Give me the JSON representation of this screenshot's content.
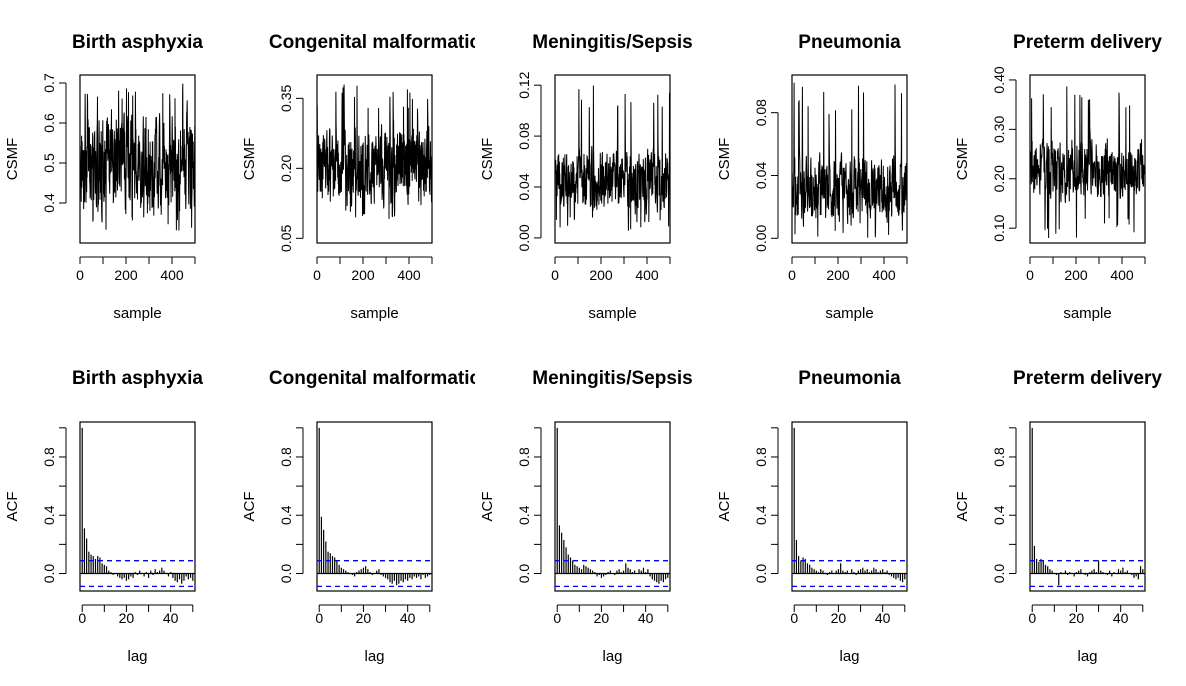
{
  "chart_data": [
    {
      "type": "line",
      "row": "trace",
      "title": "Birth asphyxia",
      "xlabel": "sample",
      "ylabel": "CSMF",
      "xlim": [
        0,
        500
      ],
      "ylim": [
        0.3,
        0.72
      ],
      "xticks": [
        0,
        200,
        400
      ],
      "xtick_labels": [
        "0",
        "200",
        "400"
      ],
      "yticks": [
        0.4,
        0.5,
        0.6,
        0.7
      ],
      "ytick_labels": [
        "0.4",
        "0.5",
        "0.6",
        "0.7"
      ],
      "center": 0.5,
      "amp": 0.1,
      "spike_max": 0.7,
      "spike_min": 0.33
    },
    {
      "type": "line",
      "row": "trace",
      "title": "Congenital malformatic",
      "xlabel": "sample",
      "ylabel": "CSMF",
      "xlim": [
        0,
        500
      ],
      "ylim": [
        0.04,
        0.4
      ],
      "xticks": [
        0,
        200,
        400
      ],
      "xtick_labels": [
        "0",
        "200",
        "400"
      ],
      "yticks": [
        0.05,
        0.2,
        0.35
      ],
      "ytick_labels": [
        "0.05",
        "0.20",
        "0.35"
      ],
      "center": 0.2,
      "amp": 0.07,
      "spike_max": 0.38,
      "spike_min": 0.09
    },
    {
      "type": "line",
      "row": "trace",
      "title": "Meningitis/Sepsis",
      "xlabel": "sample",
      "ylabel": "CSMF",
      "xlim": [
        0,
        500
      ],
      "ylim": [
        -0.004,
        0.128
      ],
      "xticks": [
        0,
        200,
        400
      ],
      "xtick_labels": [
        "0",
        "200",
        "400"
      ],
      "yticks": [
        0.0,
        0.04,
        0.08,
        0.12
      ],
      "ytick_labels": [
        "0.00",
        "0.04",
        "0.08",
        "0.12"
      ],
      "center": 0.045,
      "amp": 0.02,
      "spike_max": 0.12,
      "spike_min": 0.005
    },
    {
      "type": "line",
      "row": "trace",
      "title": "Pneumonia",
      "xlabel": "sample",
      "ylabel": "CSMF",
      "xlim": [
        0,
        500
      ],
      "ylim": [
        -0.003,
        0.104
      ],
      "xticks": [
        0,
        200,
        400
      ],
      "xtick_labels": [
        "0",
        "200",
        "400"
      ],
      "yticks": [
        0.0,
        0.04,
        0.08
      ],
      "ytick_labels": [
        "0.00",
        "0.04",
        "0.08"
      ],
      "center": 0.03,
      "amp": 0.018,
      "spike_max": 0.1,
      "spike_min": 0.0
    },
    {
      "type": "line",
      "row": "trace",
      "title": "Preterm delivery",
      "xlabel": "sample",
      "ylabel": "CSMF",
      "xlim": [
        0,
        500
      ],
      "ylim": [
        0.07,
        0.41
      ],
      "xticks": [
        0,
        200,
        400
      ],
      "xtick_labels": [
        "0",
        "200",
        "400"
      ],
      "yticks": [
        0.1,
        0.2,
        0.3,
        0.4
      ],
      "ytick_labels": [
        "0.10",
        "0.20",
        "0.30",
        "0.40"
      ],
      "center": 0.22,
      "amp": 0.05,
      "spike_max": 0.39,
      "spike_min": 0.08
    },
    {
      "type": "bar",
      "row": "acf",
      "title": "Birth asphyxia",
      "xlabel": "lag",
      "ylabel": "ACF",
      "xlim": [
        -1,
        51
      ],
      "ylim": [
        -0.12,
        1.04
      ],
      "xticks": [
        0,
        20,
        40
      ],
      "xtick_labels": [
        "0",
        "20",
        "40"
      ],
      "yticks": [
        0.0,
        0.2,
        0.4,
        0.6,
        0.8,
        1.0
      ],
      "ytick_labels": [
        "0.0",
        "",
        "0.4",
        "",
        "0.8",
        ""
      ],
      "ci": 0.088,
      "acf": [
        1.0,
        0.31,
        0.24,
        0.15,
        0.13,
        0.12,
        0.1,
        0.12,
        0.11,
        0.07,
        0.06,
        0.05,
        0.02,
        0.01,
        -0.01,
        0.0,
        -0.02,
        -0.03,
        -0.04,
        -0.03,
        -0.05,
        -0.04,
        -0.02,
        -0.03,
        0.01,
        -0.01,
        0.02,
        0.0,
        -0.02,
        0.01,
        -0.03,
        0.02,
        -0.01,
        0.03,
        0.01,
        0.02,
        0.04,
        0.02,
        0.0,
        -0.02,
        0.01,
        -0.03,
        -0.05,
        -0.06,
        -0.04,
        -0.07,
        -0.05,
        -0.02,
        -0.04,
        -0.03,
        -0.05
      ]
    },
    {
      "type": "bar",
      "row": "acf",
      "title": "Congenital malformatic",
      "xlabel": "lag",
      "ylabel": "ACF",
      "xlim": [
        -1,
        51
      ],
      "ylim": [
        -0.12,
        1.04
      ],
      "xticks": [
        0,
        20,
        40
      ],
      "xtick_labels": [
        "0",
        "20",
        "40"
      ],
      "yticks": [
        0.0,
        0.2,
        0.4,
        0.6,
        0.8,
        1.0
      ],
      "ytick_labels": [
        "0.0",
        "",
        "0.4",
        "",
        "0.8",
        ""
      ],
      "ci": 0.088,
      "acf": [
        1.0,
        0.39,
        0.3,
        0.22,
        0.15,
        0.14,
        0.12,
        0.11,
        0.09,
        0.06,
        0.04,
        0.03,
        0.02,
        0.01,
        0.0,
        -0.01,
        -0.02,
        0.01,
        0.02,
        0.03,
        0.04,
        0.05,
        0.03,
        0.01,
        -0.01,
        0.0,
        0.02,
        0.03,
        -0.01,
        -0.02,
        -0.03,
        -0.04,
        -0.06,
        -0.07,
        -0.05,
        -0.08,
        -0.07,
        -0.05,
        -0.06,
        -0.04,
        -0.05,
        -0.03,
        -0.04,
        -0.02,
        -0.03,
        -0.02,
        -0.04,
        -0.01,
        -0.03,
        -0.02,
        -0.01
      ]
    },
    {
      "type": "bar",
      "row": "acf",
      "title": "Meningitis/Sepsis",
      "xlabel": "lag",
      "ylabel": "ACF",
      "xlim": [
        -1,
        51
      ],
      "ylim": [
        -0.12,
        1.04
      ],
      "xticks": [
        0,
        20,
        40
      ],
      "xtick_labels": [
        "0",
        "20",
        "40"
      ],
      "yticks": [
        0.0,
        0.2,
        0.4,
        0.6,
        0.8,
        1.0
      ],
      "ytick_labels": [
        "0.0",
        "",
        "0.4",
        "",
        "0.8",
        ""
      ],
      "ci": 0.088,
      "acf": [
        1.0,
        0.33,
        0.28,
        0.23,
        0.18,
        0.13,
        0.11,
        0.09,
        0.06,
        0.05,
        0.04,
        0.03,
        0.06,
        0.05,
        0.04,
        0.03,
        0.02,
        0.01,
        -0.02,
        -0.01,
        -0.03,
        -0.02,
        -0.01,
        0.01,
        0.02,
        0.0,
        -0.01,
        0.02,
        0.03,
        0.01,
        0.02,
        0.07,
        0.04,
        0.03,
        0.01,
        0.02,
        0.0,
        0.03,
        0.02,
        0.04,
        0.01,
        0.03,
        -0.02,
        -0.04,
        -0.05,
        -0.06,
        -0.07,
        -0.05,
        -0.06,
        -0.04,
        -0.03
      ]
    },
    {
      "type": "bar",
      "row": "acf",
      "title": "Pneumonia",
      "xlabel": "lag",
      "ylabel": "ACF",
      "xlim": [
        -1,
        51
      ],
      "ylim": [
        -0.12,
        1.04
      ],
      "xticks": [
        0,
        20,
        40
      ],
      "xtick_labels": [
        "0",
        "20",
        "40"
      ],
      "yticks": [
        0.0,
        0.2,
        0.4,
        0.6,
        0.8,
        1.0
      ],
      "ytick_labels": [
        "0.0",
        "",
        "0.4",
        "",
        "0.8",
        ""
      ],
      "ci": 0.088,
      "acf": [
        1.0,
        0.23,
        0.12,
        0.09,
        0.11,
        0.1,
        0.07,
        0.06,
        0.04,
        0.03,
        0.02,
        0.01,
        0.03,
        0.02,
        0.0,
        -0.01,
        0.01,
        0.02,
        0.0,
        0.02,
        0.03,
        0.07,
        0.02,
        0.01,
        0.02,
        0.0,
        0.03,
        0.01,
        -0.01,
        0.02,
        0.03,
        0.04,
        0.02,
        0.03,
        0.01,
        0.02,
        0.04,
        0.03,
        0.01,
        0.02,
        0.03,
        0.01,
        0.02,
        -0.01,
        -0.02,
        -0.03,
        -0.04,
        -0.03,
        -0.05,
        -0.06,
        -0.04
      ]
    },
    {
      "type": "bar",
      "row": "acf",
      "title": "Preterm delivery",
      "xlabel": "lag",
      "ylabel": "ACF",
      "xlim": [
        -1,
        51
      ],
      "ylim": [
        -0.12,
        1.04
      ],
      "xticks": [
        0,
        20,
        40
      ],
      "xtick_labels": [
        "0",
        "20",
        "40"
      ],
      "yticks": [
        0.0,
        0.2,
        0.4,
        0.6,
        0.8,
        1.0
      ],
      "ytick_labels": [
        "0.0",
        "",
        "0.4",
        "",
        "0.8",
        ""
      ],
      "ci": 0.088,
      "acf": [
        1.0,
        0.19,
        0.1,
        0.08,
        0.1,
        0.09,
        0.06,
        0.05,
        0.03,
        0.02,
        0.0,
        -0.01,
        -0.08,
        0.01,
        0.0,
        0.02,
        -0.01,
        0.01,
        0.0,
        -0.02,
        0.01,
        0.02,
        0.03,
        0.0,
        -0.01,
        -0.02,
        0.01,
        0.02,
        0.03,
        0.01,
        0.09,
        0.02,
        0.01,
        0.0,
        -0.01,
        0.02,
        -0.02,
        0.01,
        0.0,
        0.03,
        0.02,
        0.04,
        0.01,
        0.02,
        0.0,
        -0.01,
        -0.03,
        -0.02,
        -0.04,
        0.05,
        0.03
      ]
    }
  ]
}
